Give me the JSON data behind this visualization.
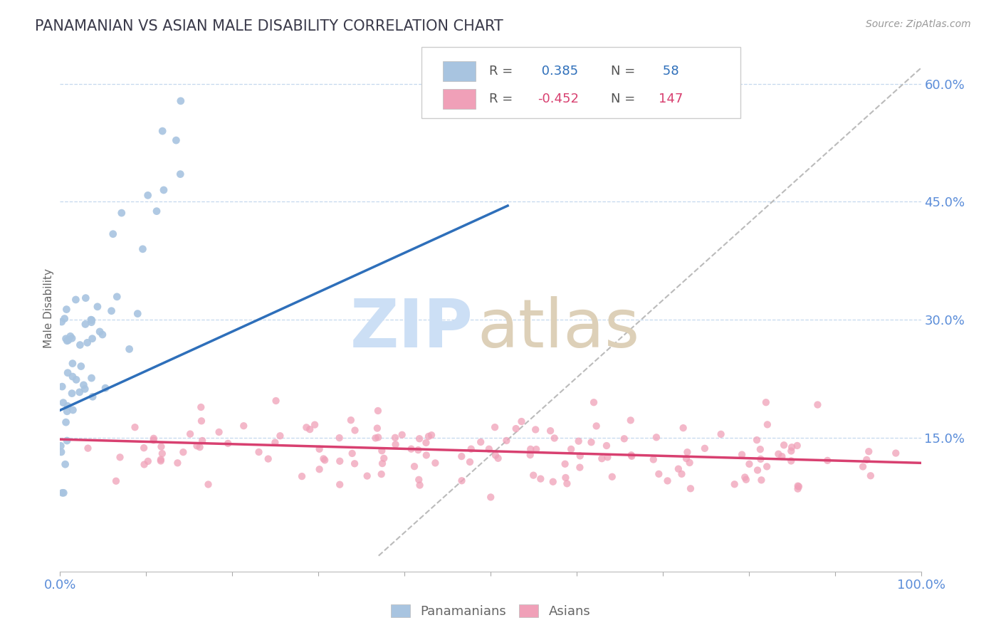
{
  "title": "PANAMANIAN VS ASIAN MALE DISABILITY CORRELATION CHART",
  "source": "Source: ZipAtlas.com",
  "ylabel": "Male Disability",
  "xlim": [
    0.0,
    1.0
  ],
  "ylim": [
    -0.02,
    0.65
  ],
  "pan_R": 0.385,
  "pan_N": 58,
  "asi_R": -0.452,
  "asi_N": 147,
  "pan_color": "#a8c4e0",
  "pan_line_color": "#2e6fba",
  "asi_color": "#f0a0b8",
  "asi_line_color": "#d84070",
  "ref_line_color": "#bbbbbb",
  "background_color": "#ffffff",
  "title_color": "#3a3a4a",
  "title_fontsize": 15,
  "axis_label_color": "#5b8dd9",
  "seed": 42,
  "pan_line_x0": 0.0,
  "pan_line_y0": 0.185,
  "pan_line_x1": 0.52,
  "pan_line_y1": 0.445,
  "asi_line_x0": 0.0,
  "asi_line_y0": 0.148,
  "asi_line_x1": 1.0,
  "asi_line_y1": 0.118,
  "ref_line_x0": 0.37,
  "ref_line_y0": 0.0,
  "ref_line_x1": 1.0,
  "ref_line_y1": 0.62
}
